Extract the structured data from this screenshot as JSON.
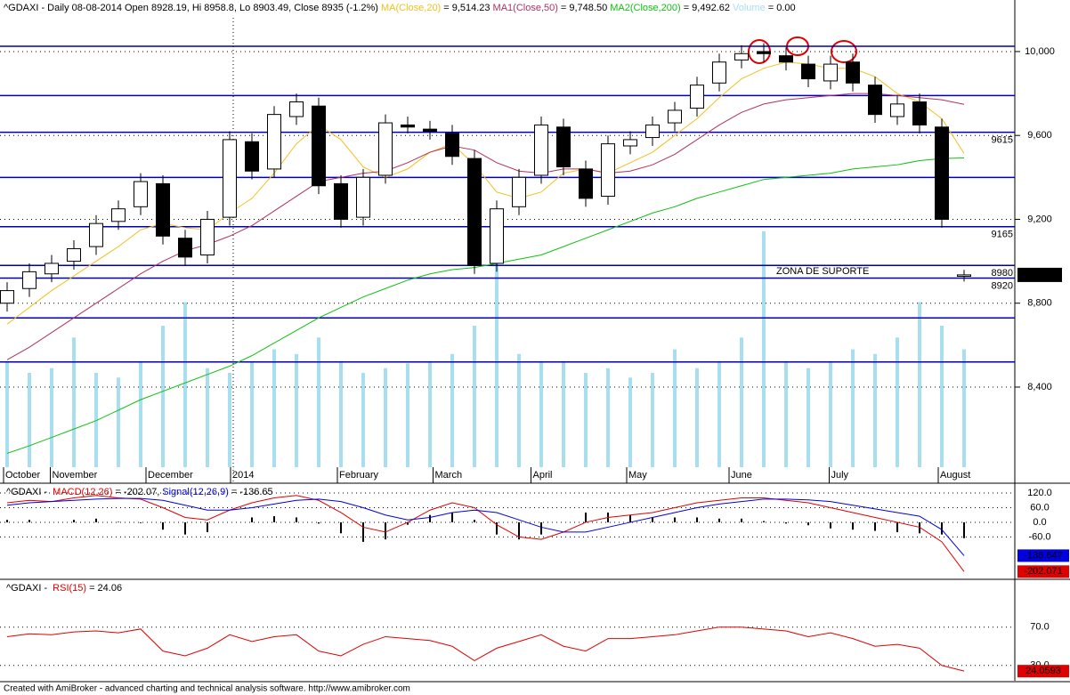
{
  "chart_data": {
    "type": "candlestick",
    "title": "^GDAXI - Daily 08-08-2014 Open 8928.19, Hi 8958.8, Lo 8903.49, Close 8935 (-1.2%)",
    "overlays": [
      {
        "name": "MA(Close,20)",
        "value_label": "= 9,514.23",
        "color": "#f0c020",
        "values": [
          8700,
          8780,
          8860,
          8930,
          9000,
          9070,
          9150,
          9180,
          9160,
          9150,
          9230,
          9300,
          9420,
          9560,
          9650,
          9580,
          9450,
          9400,
          9440,
          9520,
          9560,
          9460,
          9330,
          9300,
          9330,
          9420,
          9440,
          9420,
          9470,
          9520,
          9600,
          9680,
          9780,
          9870,
          9920,
          9950,
          9940,
          9920,
          9920,
          9880,
          9800,
          9760,
          9680,
          9514.23
        ]
      },
      {
        "name": "MA1(Close,50)",
        "value_label": "= 9,748.50",
        "color": "#b03060",
        "values": [
          8530,
          8590,
          8660,
          8730,
          8800,
          8870,
          8940,
          9000,
          9050,
          9080,
          9120,
          9170,
          9240,
          9310,
          9380,
          9400,
          9420,
          9430,
          9470,
          9520,
          9550,
          9530,
          9470,
          9430,
          9420,
          9440,
          9440,
          9420,
          9430,
          9460,
          9510,
          9580,
          9650,
          9710,
          9750,
          9770,
          9780,
          9790,
          9800,
          9800,
          9790,
          9780,
          9770,
          9748.5
        ]
      },
      {
        "name": "MA2(Close,200)",
        "value_label": "= 9,492.62",
        "color": "#10c010",
        "values": [
          8084,
          8120,
          8160,
          8200,
          8240,
          8290,
          8340,
          8380,
          8420,
          8460,
          8500,
          8550,
          8610,
          8670,
          8730,
          8780,
          8830,
          8870,
          8910,
          8940,
          8960,
          8970,
          8990,
          9010,
          9030,
          9070,
          9110,
          9150,
          9190,
          9230,
          9260,
          9300,
          9330,
          9360,
          9390,
          9400,
          9410,
          9420,
          9440,
          9450,
          9460,
          9480,
          9490,
          9492.62
        ]
      }
    ],
    "volume": {
      "name": "Volume",
      "value_label": "= 0.00",
      "color": "#a8dff0",
      "ylim": [
        0,
        100
      ],
      "values": [
        45,
        40,
        42,
        55,
        40,
        38,
        45,
        60,
        70,
        42,
        40,
        45,
        50,
        48,
        55,
        45,
        40,
        42,
        44,
        45,
        48,
        60,
        95,
        48,
        45,
        45,
        40,
        42,
        38,
        40,
        50,
        42,
        45,
        55,
        100,
        45,
        42,
        45,
        50,
        48,
        55,
        70,
        60,
        50
      ]
    },
    "open": [
      8800,
      8870,
      8940,
      9000,
      9070,
      9190,
      9260,
      9370,
      9110,
      9030,
      9210,
      9570,
      9440,
      9690,
      9740,
      9370,
      9210,
      9410,
      9650,
      9630,
      9610,
      9490,
      8990,
      9260,
      9410,
      9640,
      9440,
      9310,
      9550,
      9590,
      9660,
      9730,
      9850,
      9960,
      10000,
      9980,
      9940,
      9860,
      9950,
      9840,
      9690,
      9760,
      9640,
      8928.19
    ],
    "high": [
      8900,
      8990,
      9030,
      9100,
      9220,
      9290,
      9420,
      9410,
      9150,
      9240,
      9620,
      9610,
      9740,
      9800,
      9780,
      9410,
      9440,
      9700,
      9690,
      9670,
      9650,
      9530,
      9290,
      9440,
      9690,
      9680,
      9480,
      9600,
      9620,
      9690,
      9760,
      9880,
      9990,
      10030,
      10040,
      10020,
      9980,
      9980,
      9990,
      9880,
      9790,
      9800,
      9680,
      8958.8
    ],
    "low": [
      8760,
      8830,
      8900,
      8960,
      9030,
      9150,
      9220,
      9080,
      8980,
      8990,
      9170,
      9390,
      9400,
      9650,
      9320,
      9160,
      9170,
      9370,
      9610,
      9580,
      9460,
      8940,
      8950,
      9220,
      9370,
      9410,
      9260,
      9270,
      9510,
      9550,
      9620,
      9690,
      9810,
      9920,
      9950,
      9910,
      9830,
      9820,
      9810,
      9660,
      9650,
      9610,
      9160,
      8903.49
    ],
    "close": [
      8860,
      8950,
      8990,
      9060,
      9180,
      9250,
      9380,
      9120,
      9020,
      9200,
      9580,
      9430,
      9700,
      9760,
      9360,
      9200,
      9400,
      9660,
      9640,
      9620,
      9500,
      8980,
      9250,
      9400,
      9650,
      9450,
      9300,
      9560,
      9580,
      9650,
      9720,
      9840,
      9950,
      9990,
      9990,
      9950,
      9870,
      9940,
      9850,
      9700,
      9750,
      9650,
      9200,
      8935
    ],
    "price_label": "8,935",
    "ylim": [
      8018,
      10161
    ],
    "yticks": [
      {
        "value": 10000,
        "label": "10,000"
      },
      {
        "value": 9600,
        "label": "9,600"
      },
      {
        "value": 9200,
        "label": "9,200"
      },
      {
        "value": 8800,
        "label": "8,800"
      },
      {
        "value": 8400,
        "label": "8,400"
      }
    ],
    "xlim": [
      0,
      43
    ],
    "xticks": [
      {
        "value": 0,
        "label": "October"
      },
      {
        "value": 2.1,
        "label": "November"
      },
      {
        "value": 6.4,
        "label": "December"
      },
      {
        "value": 10.2,
        "label": "2014"
      },
      {
        "value": 15,
        "label": "February"
      },
      {
        "value": 19.3,
        "label": "March"
      },
      {
        "value": 23.7,
        "label": "April"
      },
      {
        "value": 28,
        "label": "May"
      },
      {
        "value": 32.6,
        "label": "June"
      },
      {
        "value": 37.1,
        "label": "July"
      },
      {
        "value": 42,
        "label": "August"
      }
    ],
    "levels": [
      {
        "value": 10025
      },
      {
        "value": 9790
      },
      {
        "value": 9615,
        "label": "9615"
      },
      {
        "value": 9400
      },
      {
        "value": 9165,
        "label": "9165"
      },
      {
        "value": 8980,
        "label": "8980"
      },
      {
        "value": 8920,
        "label": "8920"
      },
      {
        "value": 8730
      },
      {
        "value": 8520
      }
    ],
    "level_color": "#0000b0",
    "annotation": "ZONA DE SUPORTE",
    "macd": {
      "title": "^GDAXI - ",
      "name": "MACD(12,26)",
      "value_label": "= -202.07,",
      "signal_name": "Signal(12,26,9)",
      "signal_value_label": "= -136.65",
      "ylim": [
        -230,
        153
      ],
      "yticks": [
        {
          "value": 120,
          "label": "120.0"
        },
        {
          "value": 60,
          "label": "60.0"
        },
        {
          "value": 0,
          "label": "0.0"
        },
        {
          "value": -60,
          "label": "-60.0"
        }
      ],
      "color": "#e00000",
      "signal_color": "#0000e0",
      "values": [
        80,
        90,
        85,
        100,
        110,
        100,
        95,
        60,
        20,
        10,
        50,
        80,
        100,
        110,
        90,
        40,
        -20,
        -40,
        0,
        50,
        80,
        60,
        -10,
        -60,
        -70,
        -40,
        0,
        20,
        30,
        40,
        60,
        80,
        90,
        100,
        100,
        90,
        80,
        60,
        40,
        20,
        0,
        -20,
        -80,
        -202.071
      ],
      "signal": [
        70,
        80,
        85,
        90,
        95,
        98,
        98,
        90,
        70,
        50,
        50,
        60,
        75,
        90,
        95,
        85,
        60,
        30,
        10,
        20,
        40,
        50,
        40,
        10,
        -20,
        -40,
        -40,
        -20,
        0,
        20,
        40,
        60,
        75,
        85,
        95,
        95,
        92,
        85,
        70,
        55,
        40,
        25,
        -30,
        -136.647
      ],
      "histogram": [
        10,
        10,
        0,
        10,
        15,
        2,
        -3,
        -30,
        -50,
        -40,
        0,
        20,
        25,
        20,
        -5,
        -45,
        -80,
        -70,
        -10,
        30,
        40,
        10,
        -50,
        -70,
        -50,
        0,
        40,
        40,
        30,
        20,
        20,
        20,
        15,
        15,
        5,
        -5,
        -12,
        -25,
        -30,
        -35,
        -40,
        -45,
        -50,
        -65
      ],
      "end_labels": [
        {
          "value": -136.647,
          "label": "-136.647"
        },
        {
          "value": -202.071,
          "label": "-202.071"
        }
      ]
    },
    "rsi": {
      "title": "^GDAXI - ",
      "name": "RSI(15)",
      "value_label": "= 24.06",
      "color": "#e00000",
      "ylim": [
        14,
        118
      ],
      "yticks": [
        {
          "value": 70,
          "label": "70.0"
        },
        {
          "value": 30,
          "label": "30.0"
        }
      ],
      "values": [
        60,
        63,
        62,
        65,
        66,
        64,
        68,
        45,
        40,
        48,
        62,
        55,
        60,
        62,
        45,
        40,
        52,
        60,
        58,
        56,
        50,
        35,
        48,
        55,
        62,
        50,
        45,
        58,
        58,
        60,
        62,
        66,
        70,
        70,
        68,
        66,
        60,
        64,
        58,
        50,
        52,
        48,
        30,
        24.0593
      ],
      "end_label": {
        "value": 24.0593,
        "label": "24.0593"
      }
    },
    "footer": "Created with AmiBroker - advanced charting and technical analysis software. http://www.amibroker.com"
  }
}
